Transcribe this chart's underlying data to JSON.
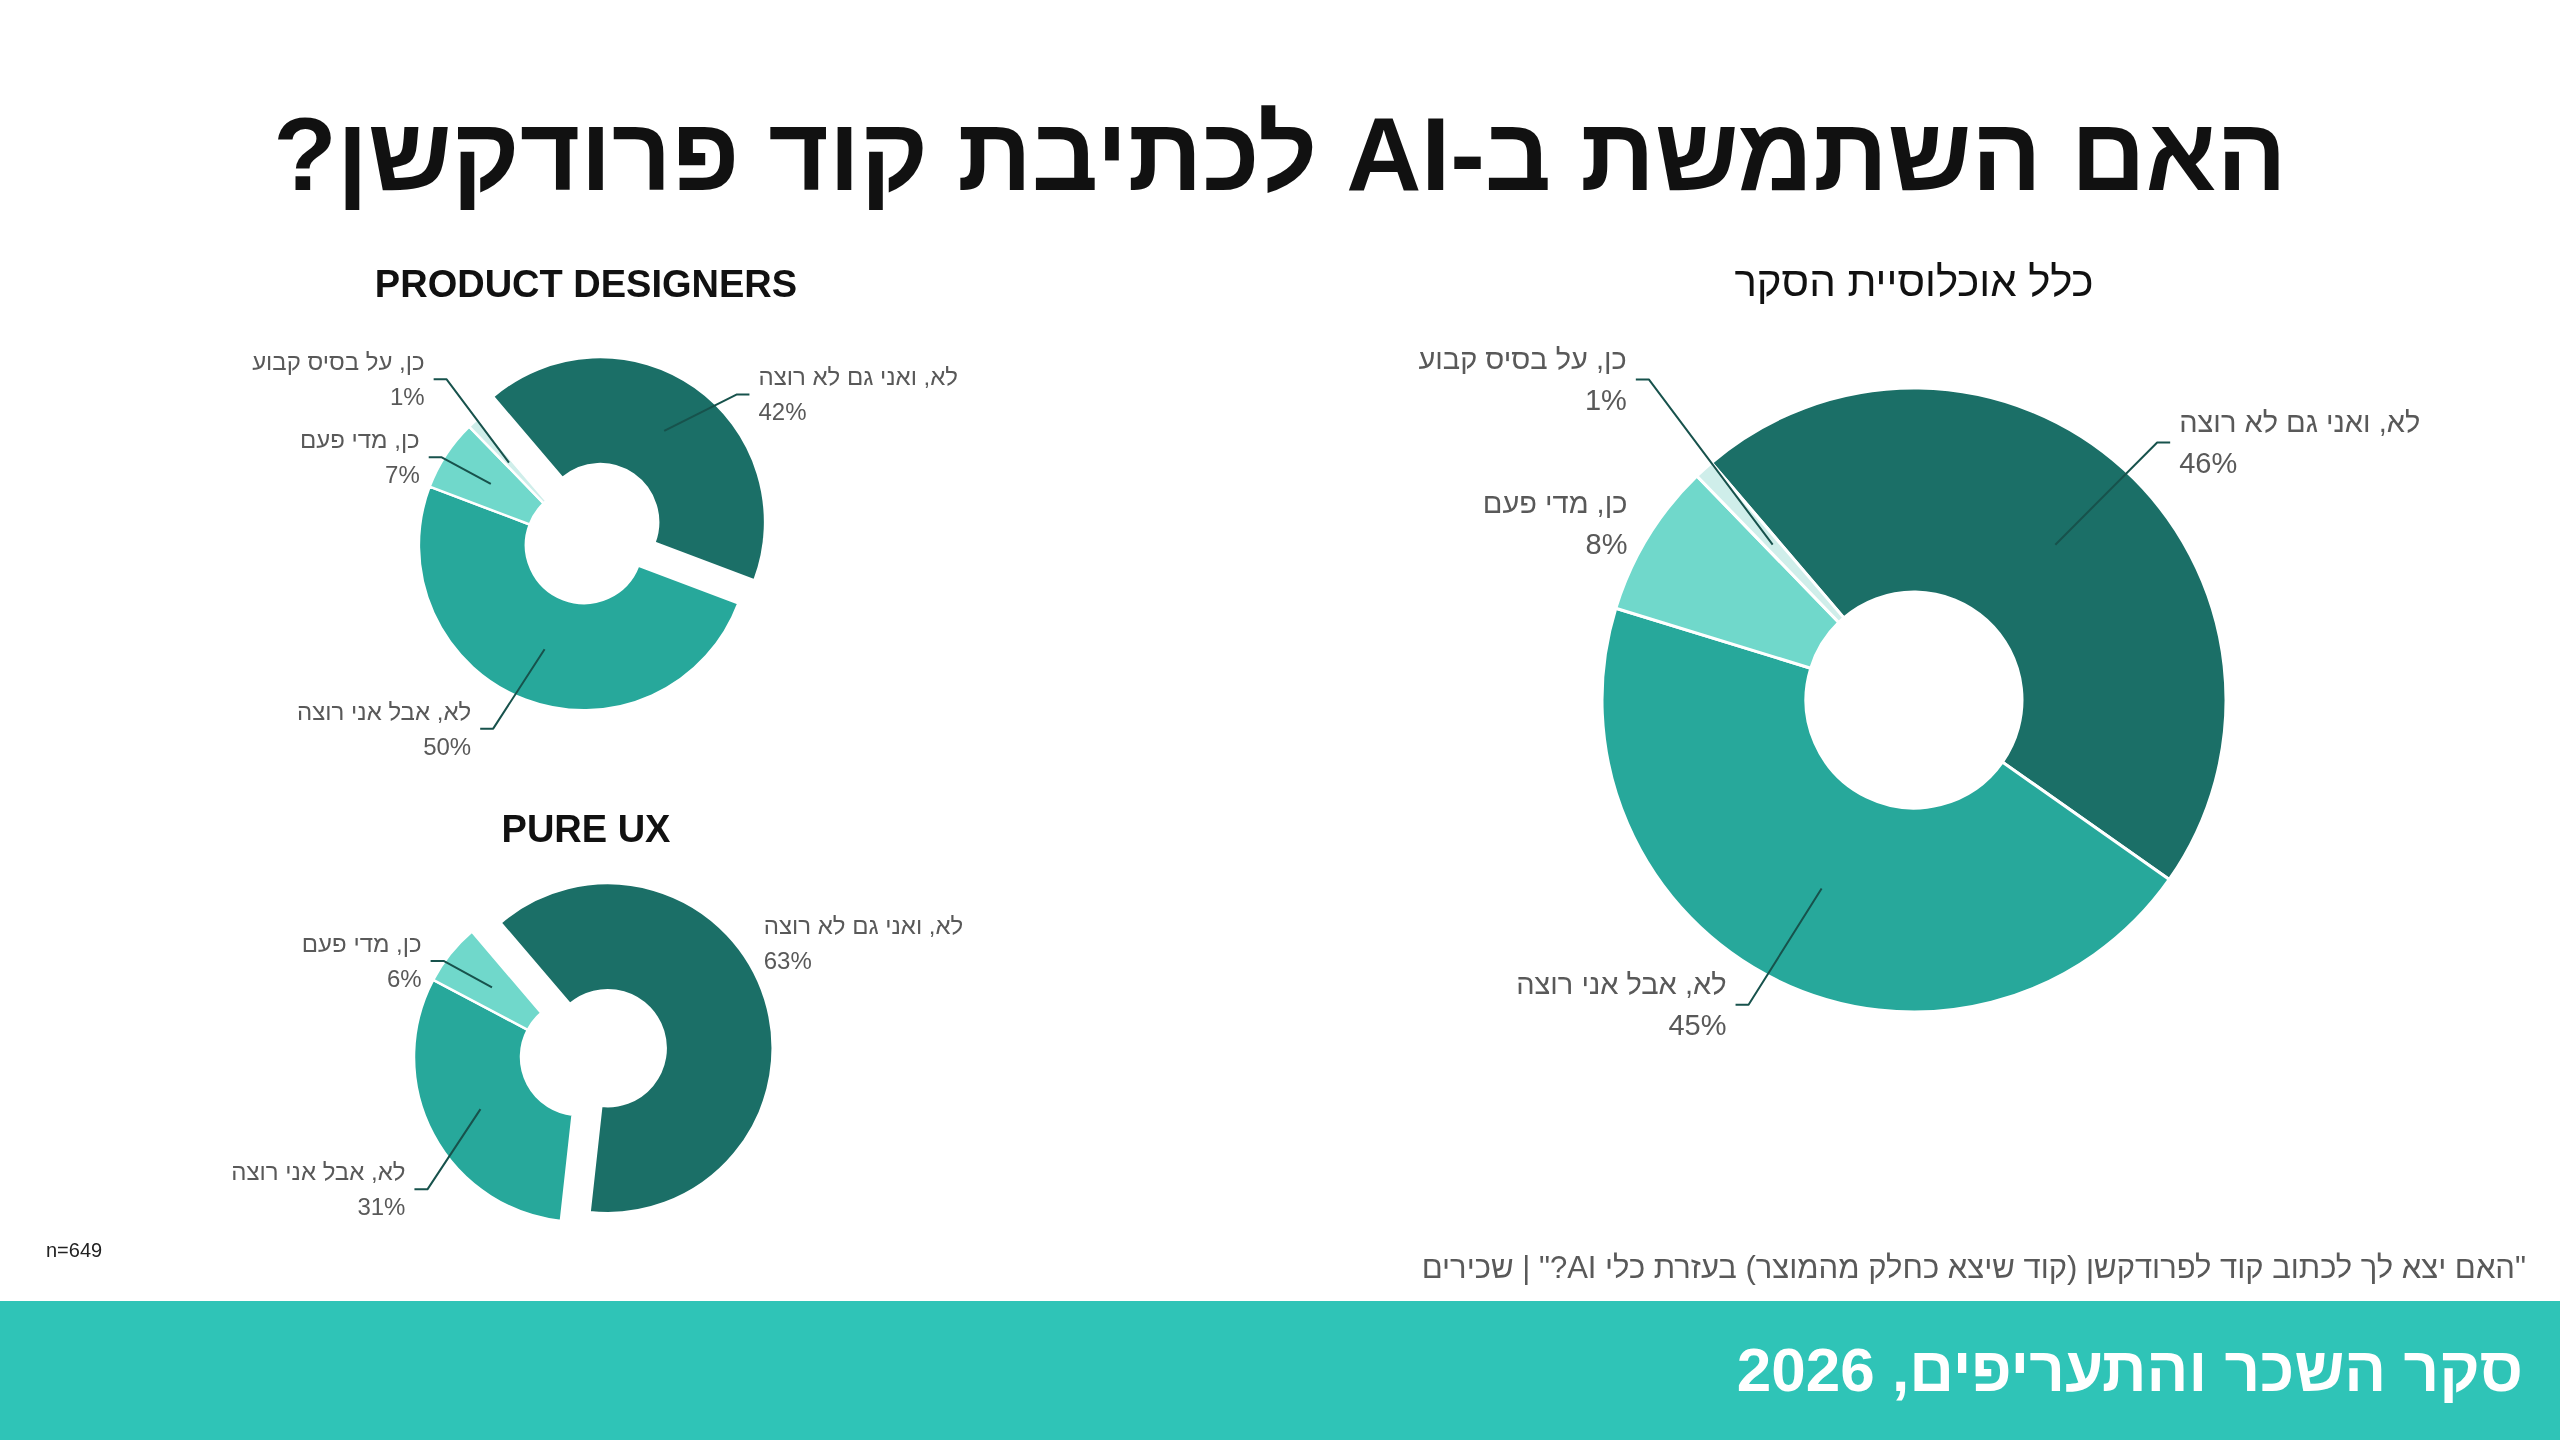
{
  "chart_data": [
    {
      "type": "donut",
      "title": "האם השתמשת ב-AI לכתיבת קוד פרודקשן?",
      "subtitle": "כלל אוכלוסיית הסקר",
      "categories": [
        "לא, ואני גם לא רוצה",
        "לא, אבל אני רוצה",
        "כן, מדי פעם",
        "כן, על בסיס קבוע"
      ],
      "values": [
        46,
        45,
        8,
        1
      ],
      "colors": [
        "#1b6f67",
        "#27a89b",
        "#70d8cb",
        "#cfeeea"
      ],
      "value_labels": [
        "46%",
        "45%",
        "8%",
        "1%"
      ],
      "annotations": [
        "n=649",
        "\"האם יצא לך לכתוב קוד לפרודקשן (קוד שיצא כחלק מהמוצר) בעזרת כלי AI?\" | שכירים",
        "סקר השכר והתעריפים, 2026"
      ]
    },
    {
      "type": "donut",
      "subtitle": "PRODUCT DESIGNERS",
      "categories": [
        "לא, ואני גם לא רוצה",
        "לא, אבל אני רוצה",
        "כן, מדי פעם",
        "כן, על בסיס קבוע"
      ],
      "values": [
        42,
        50,
        7,
        1
      ],
      "colors": [
        "#1b6f67",
        "#27a89b",
        "#70d8cb",
        "#cfeeea"
      ],
      "value_labels": [
        "42%",
        "50%",
        "7%",
        "1%"
      ]
    },
    {
      "type": "donut",
      "subtitle": "PURE UX",
      "categories": [
        "לא, ואני גם לא רוצה",
        "לא, אבל אני רוצה",
        "כן, מדי פעם"
      ],
      "values": [
        63,
        31,
        6
      ],
      "colors": [
        "#1b6f67",
        "#27a89b",
        "#70d8cb"
      ],
      "value_labels": [
        "63%",
        "31%",
        "6%"
      ]
    }
  ]
}
